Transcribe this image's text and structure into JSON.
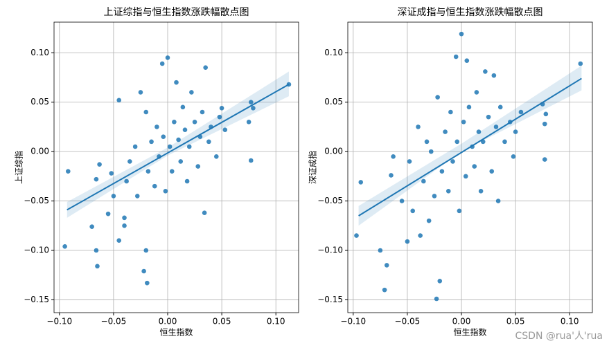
{
  "chart_data": [
    {
      "type": "scatter",
      "title": "上证综指与恒生指数涨跌幅散点图",
      "x_label": "恒生指数",
      "y_label": "上证综指",
      "color": "#1f77b4",
      "grid": true,
      "xlim": [
        -0.105,
        0.121
      ],
      "ylim": [
        -0.163,
        0.131
      ],
      "xticks": [
        {
          "value": -0.1,
          "label": "−0.10"
        },
        {
          "value": -0.05,
          "label": "−0.05"
        },
        {
          "value": 0,
          "label": "0.00"
        },
        {
          "value": 0.05,
          "label": "0.05"
        },
        {
          "value": 0.1,
          "label": "0.10"
        }
      ],
      "yticks": [
        {
          "value": -0.15,
          "label": "−0.15"
        },
        {
          "value": -0.1,
          "label": "−0.10"
        },
        {
          "value": -0.05,
          "label": "−0.05"
        },
        {
          "value": 0,
          "label": "0.00"
        },
        {
          "value": 0.05,
          "label": "0.05"
        },
        {
          "value": 0.1,
          "label": "0.10"
        }
      ],
      "x": [
        -0.095,
        -0.092,
        -0.07,
        -0.066,
        -0.065,
        -0.063,
        -0.066,
        -0.055,
        -0.052,
        -0.05,
        -0.045,
        -0.045,
        -0.04,
        -0.04,
        -0.038,
        -0.035,
        -0.03,
        -0.028,
        -0.025,
        -0.022,
        -0.02,
        -0.019,
        -0.02,
        -0.018,
        -0.015,
        -0.012,
        -0.01,
        -0.008,
        -0.005,
        -0.004,
        -0.002,
        0.0,
        0.002,
        0.004,
        0.006,
        0.008,
        0.01,
        0.012,
        0.014,
        0.016,
        0.018,
        0.02,
        0.022,
        0.025,
        0.028,
        0.03,
        0.032,
        0.034,
        0.035,
        0.038,
        0.04,
        0.045,
        0.048,
        0.05,
        0.053,
        0.075,
        0.077,
        0.079,
        0.077,
        0.112
      ],
      "values": [
        -0.096,
        -0.02,
        -0.076,
        -0.1,
        -0.116,
        -0.013,
        -0.028,
        -0.063,
        -0.022,
        -0.045,
        -0.09,
        0.052,
        -0.067,
        -0.075,
        -0.03,
        -0.01,
        0.005,
        -0.045,
        0.06,
        -0.121,
        -0.1,
        -0.133,
        0.04,
        -0.02,
        0.01,
        -0.035,
        0.025,
        -0.005,
        0.089,
        0.015,
        -0.04,
        0.095,
        0.005,
        -0.02,
        0.03,
        0.07,
        0.012,
        -0.01,
        0.045,
        0.022,
        -0.03,
        0.005,
        0.06,
        0.03,
        -0.015,
        0.015,
        0.04,
        -0.062,
        0.085,
        0.01,
        0.025,
        -0.005,
        0.035,
        0.044,
        0.022,
        0.03,
        0.05,
        0.044,
        -0.009,
        0.068
      ],
      "regression": {
        "x": [
          -0.093,
          0.112
        ],
        "y": [
          -0.059,
          0.068
        ]
      },
      "ci_band": {
        "x": [
          -0.093,
          0,
          0.112
        ],
        "lower": [
          -0.067,
          -0.004,
          0.056
        ],
        "upper": [
          -0.051,
          0.004,
          0.081
        ]
      }
    },
    {
      "type": "scatter",
      "title": "深证成指与恒生指数涨跌幅散点图",
      "x_label": "恒生指数",
      "y_label": "深证成指",
      "color": "#1f77b4",
      "grid": true,
      "xlim": [
        -0.105,
        0.121
      ],
      "ylim": [
        -0.163,
        0.131
      ],
      "xticks": [
        {
          "value": -0.1,
          "label": "−0.10"
        },
        {
          "value": -0.05,
          "label": "−0.05"
        },
        {
          "value": 0,
          "label": "0.00"
        },
        {
          "value": 0.05,
          "label": "0.05"
        },
        {
          "value": 0.1,
          "label": "0.10"
        }
      ],
      "yticks": [
        {
          "value": -0.15,
          "label": "−0.15"
        },
        {
          "value": -0.1,
          "label": "−0.10"
        },
        {
          "value": -0.05,
          "label": "−0.05"
        },
        {
          "value": 0,
          "label": "0.00"
        },
        {
          "value": 0.05,
          "label": "0.05"
        },
        {
          "value": 0.1,
          "label": "0.10"
        }
      ],
      "x": [
        -0.097,
        -0.093,
        -0.075,
        -0.071,
        -0.069,
        -0.063,
        -0.065,
        -0.055,
        -0.05,
        -0.048,
        -0.045,
        -0.04,
        -0.038,
        -0.035,
        -0.032,
        -0.03,
        -0.028,
        -0.025,
        -0.022,
        -0.023,
        -0.02,
        -0.018,
        -0.015,
        -0.012,
        -0.01,
        -0.008,
        -0.005,
        -0.004,
        -0.002,
        0.0,
        0.002,
        0.004,
        0.005,
        0.007,
        0.01,
        0.012,
        0.014,
        0.016,
        0.018,
        0.02,
        0.022,
        0.025,
        0.028,
        0.03,
        0.032,
        0.034,
        0.036,
        0.04,
        0.045,
        0.048,
        0.05,
        0.055,
        0.075,
        0.077,
        0.078,
        0.077,
        0.11
      ],
      "values": [
        -0.085,
        -0.031,
        -0.1,
        -0.14,
        -0.115,
        -0.005,
        -0.024,
        -0.05,
        -0.091,
        -0.01,
        -0.06,
        0.025,
        -0.085,
        -0.03,
        0.01,
        -0.07,
        0.0,
        -0.045,
        0.055,
        -0.149,
        -0.131,
        -0.02,
        0.02,
        -0.04,
        0.04,
        -0.01,
        0.096,
        0.01,
        -0.06,
        0.119,
        0.03,
        -0.025,
        0.092,
        0.045,
        0.005,
        -0.015,
        0.06,
        0.02,
        -0.04,
        0.01,
        0.081,
        0.035,
        -0.02,
        0.077,
        0.025,
        -0.05,
        0.045,
        0.01,
        0.03,
        -0.005,
        0.02,
        0.04,
        0.048,
        0.028,
        0.038,
        -0.008,
        0.089
      ],
      "regression": {
        "x": [
          -0.095,
          0.111
        ],
        "y": [
          -0.065,
          0.074
        ]
      },
      "ci_band": {
        "x": [
          -0.095,
          0,
          0.111
        ],
        "lower": [
          -0.075,
          0.0,
          0.062
        ],
        "upper": [
          -0.055,
          0.008,
          0.087
        ]
      }
    }
  ],
  "watermark": "CSDN @rua'人'rua"
}
